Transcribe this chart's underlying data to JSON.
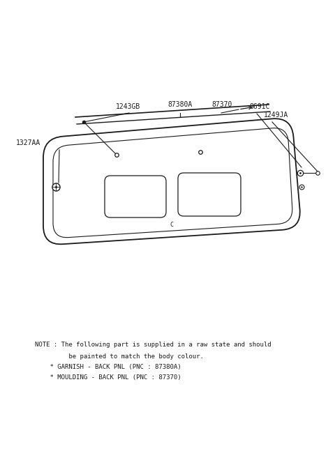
{
  "bg_color": "#ffffff",
  "line_color": "#1a1a1a",
  "fig_width": 4.8,
  "fig_height": 6.57,
  "dpi": 100,
  "note_lines": [
    "NOTE : The following part is supplied in a raw state and should",
    "         be painted to match the body colour.",
    "    * GARNISH - BACK PNL (PNC : 87380A)",
    "    * MOULDING - BACK PNL (PNC : 87370)"
  ]
}
